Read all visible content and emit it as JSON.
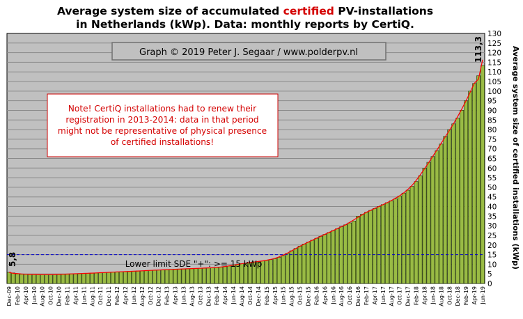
{
  "chart_data": {
    "type": "bar",
    "title_parts": [
      "Average system size of accumulated ",
      "certified",
      " PV-installations",
      "in Netherlands (kWp). Data: monthly reports by CertiQ."
    ],
    "ylabel": "Average system size of certified installations (kWp)",
    "xlabel": "",
    "ylim": [
      0,
      130
    ],
    "y_ticks": [
      0,
      5,
      10,
      15,
      20,
      25,
      30,
      35,
      40,
      45,
      50,
      55,
      60,
      65,
      70,
      75,
      80,
      85,
      90,
      95,
      100,
      105,
      110,
      115,
      120,
      125,
      130
    ],
    "grid": true,
    "credit": "Graph © 2019 Peter J. Segaar / www.polderpv.nl",
    "note_lines": [
      "Note! CertiQ installations had to renew their",
      "registration in 2013-2014:  data in that period",
      "might not be representative of physical presence",
      "of certified installations!"
    ],
    "lower_limit_label": "Lower limit  SDE \"+\":   >= 15 kWp",
    "lower_limit_value": 15,
    "first_label": "5,8",
    "last_label": "113,3",
    "bar_color": "#99bb44",
    "curve_color": "#ff0000",
    "limit_line_color": "#0000cc",
    "categories": [
      "Dec-09",
      "Jan-10",
      "Feb-10",
      "Mar-10",
      "Apr-10",
      "May-10",
      "Jun-10",
      "Jul-10",
      "Aug-10",
      "Sep-10",
      "Oct-10",
      "Nov-10",
      "Dec-10",
      "Jan-11",
      "Feb-11",
      "Mar-11",
      "Apr-11",
      "May-11",
      "Jun-11",
      "Jul-11",
      "Aug-11",
      "Sep-11",
      "Oct-11",
      "Nov-11",
      "Dec-11",
      "Jan-12",
      "Feb-12",
      "Mar-12",
      "Apr-12",
      "May-12",
      "Jun-12",
      "Jul-12",
      "Aug-12",
      "Sep-12",
      "Oct-12",
      "Nov-12",
      "Dec-12",
      "Jan-13",
      "Feb-13",
      "Mar-13",
      "Apr-13",
      "May-13",
      "Jun-13",
      "Jul-13",
      "Aug-13",
      "Sep-13",
      "Oct-13",
      "Nov-13",
      "Dec-13",
      "Jan-14",
      "Feb-14",
      "Mar-14",
      "Apr-14",
      "May-14",
      "Jun-14",
      "Jul-14",
      "Aug-14",
      "Sep-14",
      "Oct-14",
      "Nov-14",
      "Dec-14",
      "Jan-15",
      "Feb-15",
      "Mar-15",
      "Apr-15",
      "May-15",
      "Jun-15",
      "Jul-15",
      "Aug-15",
      "Sep-15",
      "Oct-15",
      "Nov-15",
      "Dec-15",
      "Jan-16",
      "Feb-16",
      "Mar-16",
      "Apr-16",
      "May-16",
      "Jun-16",
      "Jul-16",
      "Aug-16",
      "Sep-16",
      "Oct-16",
      "Nov-16",
      "Dec-16",
      "Jan-17",
      "Feb-17",
      "Mar-17",
      "Apr-17",
      "May-17",
      "Jun-17",
      "Jul-17",
      "Aug-17",
      "Sep-17",
      "Oct-17",
      "Nov-17",
      "Dec-17",
      "Jan-18",
      "Feb-18",
      "Mar-18",
      "Apr-18",
      "May-18",
      "Jun-18",
      "Jul-18",
      "Aug-18",
      "Sep-18",
      "Oct-18",
      "Nov-18",
      "Dec-18",
      "Jan-19",
      "Feb-19",
      "Mar-19",
      "Apr-19",
      "May-19",
      "Jun-19"
    ],
    "x_tick_labels": [
      "Dec-09",
      "Feb-10",
      "Apr-10",
      "Jun-10",
      "Aug-10",
      "Oct-10",
      "Dec-10",
      "Feb-11",
      "Apr-11",
      "Jun-11",
      "Aug-11",
      "Oct-11",
      "Dec-11",
      "Feb-12",
      "Apr-12",
      "Jun-12",
      "Aug-12",
      "Oct-12",
      "Dec-12",
      "Feb-13",
      "Apr-13",
      "Jun-13",
      "Aug-13",
      "Oct-13",
      "Dec-13",
      "Feb-14",
      "Apr-14",
      "Jun-14",
      "Aug-14",
      "Oct-14",
      "Dec-14",
      "Feb-15",
      "Apr-15",
      "Jun-15",
      "Aug-15",
      "Oct-15",
      "Dec-15",
      "Feb-16",
      "Apr-16",
      "Jun-16",
      "Aug-16",
      "Oct-16",
      "Dec-16",
      "Feb-17",
      "Apr-17",
      "Jun-17",
      "Aug-17",
      "Oct-17",
      "Dec-17",
      "Feb-18",
      "Apr-18",
      "Jun-18",
      "Aug-18",
      "Oct-18",
      "Dec-18",
      "Feb-19",
      "Apr-19",
      "Jun-19"
    ],
    "series": [
      {
        "values": [
          5.8,
          5.5,
          5.0,
          4.8,
          4.8,
          4.7,
          4.7,
          4.7,
          4.6,
          4.6,
          4.6,
          4.7,
          4.7,
          4.8,
          4.9,
          5.0,
          5.1,
          5.2,
          5.2,
          5.3,
          5.4,
          5.5,
          5.6,
          5.7,
          5.8,
          5.9,
          6.0,
          6.1,
          6.2,
          6.3,
          6.4,
          6.5,
          6.6,
          6.7,
          6.8,
          6.9,
          7.0,
          7.1,
          7.2,
          7.3,
          7.4,
          7.5,
          7.6,
          7.7,
          7.7,
          7.8,
          7.9,
          8.0,
          8.1,
          8.2,
          8.3,
          8.5,
          8.8,
          9.1,
          9.5,
          9.9,
          10.3,
          10.6,
          10.9,
          11.2,
          11.4,
          11.7,
          12.0,
          12.4,
          12.9,
          13.6,
          14.5,
          15.7,
          17.0,
          18.2,
          19.4,
          20.5,
          21.5,
          22.5,
          23.5,
          24.5,
          25.5,
          26.5,
          27.5,
          28.5,
          29.5,
          30.5,
          31.5,
          32.5,
          35.0,
          36.0,
          37.0,
          38.0,
          39.0,
          40.0,
          41.0,
          42.0,
          43.0,
          44.0,
          45.5,
          47.0,
          48.5,
          50.5,
          53.0,
          56.0,
          60.0,
          63.0,
          66.0,
          69.0,
          72.5,
          76.5,
          80.0,
          83.0,
          86.0,
          90.0,
          95.0,
          100.0,
          104.0,
          108.0,
          113.3
        ]
      }
    ]
  }
}
